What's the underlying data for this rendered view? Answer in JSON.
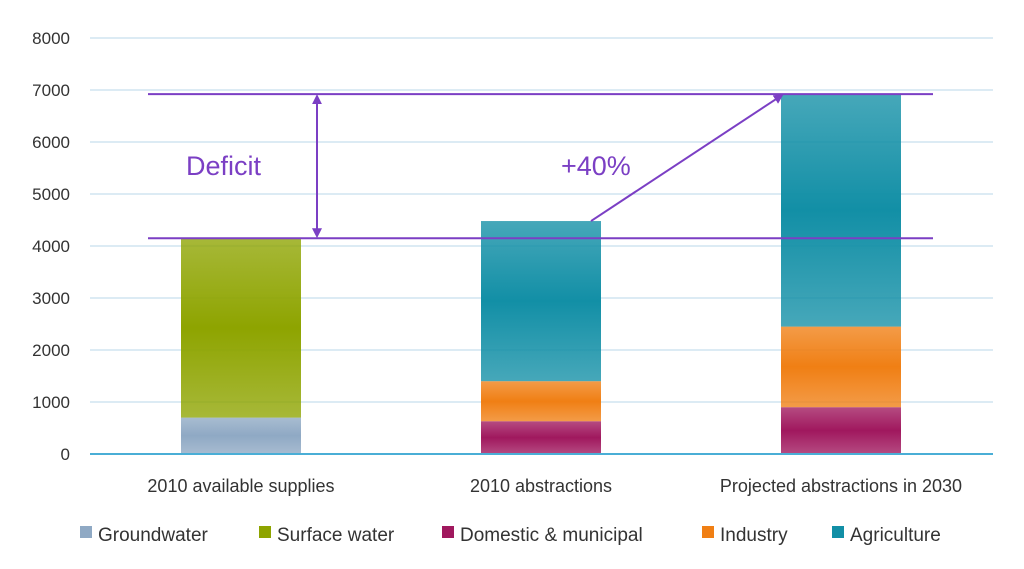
{
  "chart_data": {
    "type": "bar",
    "stacked": true,
    "categories": [
      "2010 available supplies",
      "2010 abstractions",
      "Projected abstractions in 2030"
    ],
    "series": [
      {
        "name": "Groundwater",
        "values": [
          700,
          0,
          0
        ],
        "color": "#8fa9c4"
      },
      {
        "name": "Surface water",
        "values": [
          3450,
          0,
          0
        ],
        "color": "#8ea400"
      },
      {
        "name": "Domestic & municipal",
        "values": [
          0,
          630,
          900
        ],
        "color": "#a0185e"
      },
      {
        "name": "Industry",
        "values": [
          0,
          770,
          1550
        ],
        "color": "#f07f14"
      },
      {
        "name": "Agriculture",
        "values": [
          0,
          3080,
          4470
        ],
        "color": "#128fa6"
      }
    ],
    "ylim": [
      0,
      8000
    ],
    "yticks": [
      "0",
      "1000",
      "2000",
      "3000",
      "4000",
      "5000",
      "6000",
      "7000",
      "8000"
    ],
    "grid": true,
    "legend_position": "bottom",
    "reference_lines": [
      4150,
      6920
    ],
    "annotations": {
      "deficit_label": "Deficit",
      "growth_label": "+40%"
    },
    "colors": {
      "annotation": "#7b3fc4",
      "grid": "#b8d7ea",
      "axis": "#4aaed6"
    }
  }
}
